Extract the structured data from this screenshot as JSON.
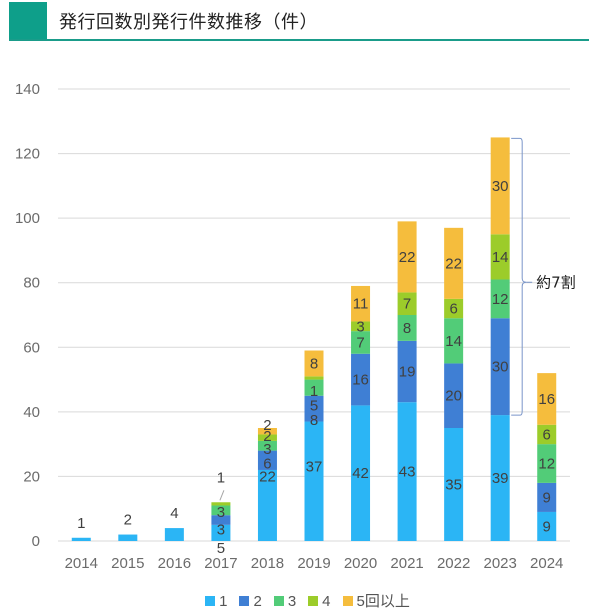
{
  "header": {
    "title": "発行回数別発行件数推移（件）"
  },
  "chart_data": {
    "type": "bar",
    "stacked": true,
    "title": "発行回数別発行件数推移（件）",
    "xlabel": "",
    "ylabel": "",
    "ylim": [
      0,
      140
    ],
    "yticks": [
      0,
      20,
      40,
      60,
      80,
      100,
      120,
      140
    ],
    "grid": true,
    "legend_position": "bottom",
    "categories": [
      "2014",
      "2015",
      "2016",
      "2017",
      "2018",
      "2019",
      "2020",
      "2021",
      "2022",
      "2023",
      "2024"
    ],
    "series": [
      {
        "name": "1",
        "color": "#2bb5f5",
        "values": [
          1,
          2,
          4,
          5,
          22,
          37,
          42,
          43,
          35,
          39,
          9
        ]
      },
      {
        "name": "2",
        "color": "#3f7fd4",
        "values": [
          0,
          0,
          0,
          3,
          6,
          8,
          16,
          19,
          20,
          30,
          9
        ]
      },
      {
        "name": "3",
        "color": "#52cc78",
        "values": [
          0,
          0,
          0,
          3,
          3,
          5,
          7,
          8,
          14,
          12,
          12
        ]
      },
      {
        "name": "4",
        "color": "#9ccc2a",
        "values": [
          0,
          0,
          0,
          1,
          2,
          1,
          3,
          7,
          6,
          14,
          6
        ]
      },
      {
        "name": "5回以上",
        "color": "#f5bd3d",
        "values": [
          0,
          0,
          0,
          0,
          2,
          8,
          11,
          22,
          22,
          30,
          16
        ]
      }
    ],
    "totals_shown": {
      "2014": 1,
      "2015": 2,
      "2016": 4
    },
    "annotation": {
      "text": "約7割",
      "target": "2023",
      "span": "series 2 to 5回以上"
    }
  },
  "legend": [
    "1",
    "2",
    "3",
    "4",
    "5回以上"
  ]
}
